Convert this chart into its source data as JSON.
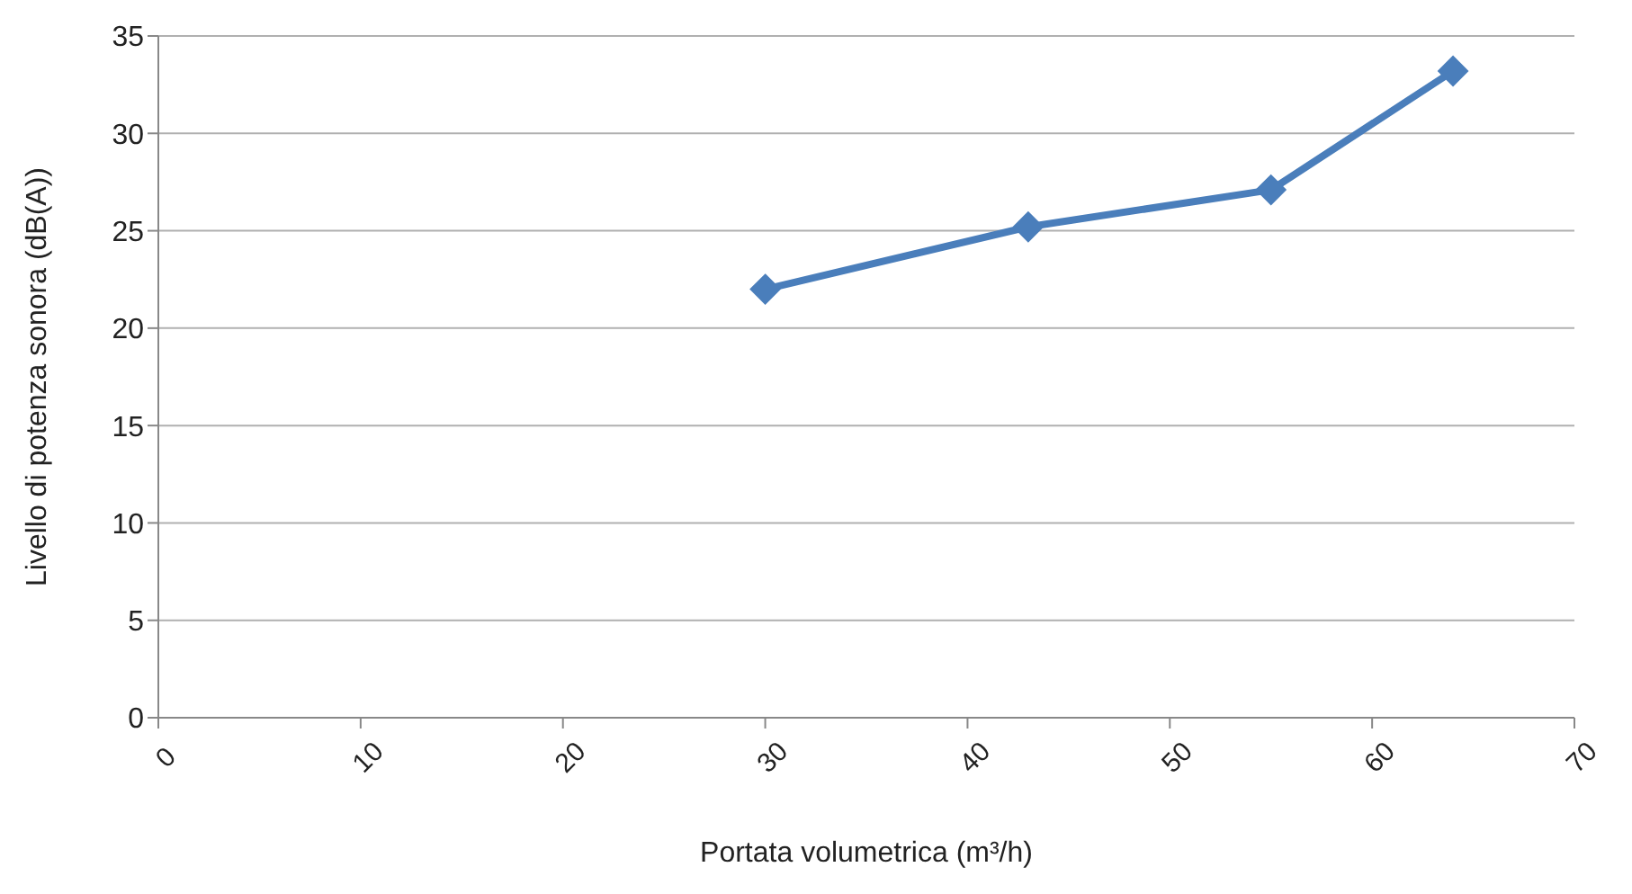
{
  "chart_data": {
    "type": "line",
    "xlabel": "Portata volumetrica (m³/h)",
    "ylabel": "Livello di potenza sonora (dB(A))",
    "x": [
      30,
      43,
      55,
      64
    ],
    "series": [
      {
        "color": "#4a7ebb",
        "values": [
          22.0,
          25.2,
          27.1,
          33.2
        ]
      }
    ],
    "xlim": [
      0,
      70
    ],
    "xticks": [
      0,
      10,
      20,
      30,
      40,
      50,
      60,
      70
    ],
    "ylim": [
      0,
      35
    ],
    "yticks": [
      0,
      5,
      10,
      15,
      20,
      25,
      30,
      35
    ],
    "grid": "y",
    "marker": "diamond",
    "line_style": "solid",
    "legend": false
  }
}
